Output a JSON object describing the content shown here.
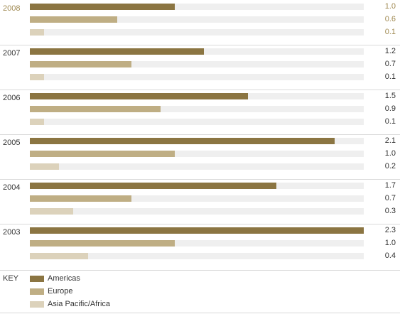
{
  "chart_data": {
    "type": "bar",
    "orientation": "horizontal",
    "groups": [
      "2008",
      "2007",
      "2006",
      "2005",
      "2004",
      "2003"
    ],
    "series": [
      {
        "name": "Americas",
        "color": "#8b7542",
        "values": [
          1.0,
          1.2,
          1.5,
          2.1,
          1.7,
          2.3
        ]
      },
      {
        "name": "Europe",
        "color": "#bfae84",
        "values": [
          0.6,
          0.7,
          0.9,
          1.0,
          0.7,
          1.0
        ]
      },
      {
        "name": "Asia Pacific/Africa",
        "color": "#dcd2bb",
        "values": [
          0.1,
          0.1,
          0.1,
          0.2,
          0.3,
          0.4
        ]
      }
    ],
    "value_labels": [
      [
        "1.0",
        "0.6",
        "0.1"
      ],
      [
        "1.2",
        "0.7",
        "0.1"
      ],
      [
        "1.5",
        "0.9",
        "0.1"
      ],
      [
        "2.1",
        "1.0",
        "0.2"
      ],
      [
        "1.7",
        "0.7",
        "0.3"
      ],
      [
        "2.3",
        "1.0",
        "0.4"
      ]
    ],
    "xlim": [
      0,
      2.3
    ],
    "grid": false,
    "legend_placement": "bottom-left"
  },
  "key": {
    "title": "KEY"
  },
  "colors": {
    "highlight_text": "#a08a52",
    "default_text": "#333333",
    "track": "#efefef",
    "separator": "#d9d9d9"
  }
}
